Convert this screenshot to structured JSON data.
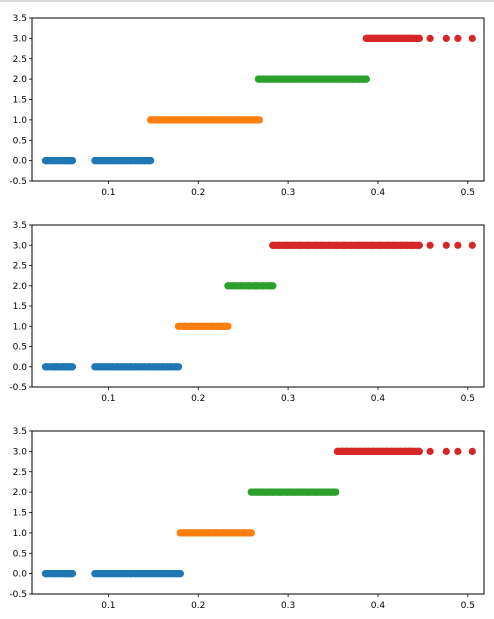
{
  "chart_data": [
    {
      "type": "scatter",
      "title": "",
      "xlabel": "",
      "ylabel": "",
      "xlim": [
        0.015,
        0.518
      ],
      "ylim": [
        -0.5,
        3.5
      ],
      "xticks": [
        "0.1",
        "0.2",
        "0.3",
        "0.4",
        "0.5"
      ],
      "yticks": [
        "-0.5",
        "0.0",
        "0.5",
        "1.0",
        "1.5",
        "2.0",
        "2.5",
        "3.0",
        "3.5"
      ],
      "grid": false,
      "legend": "none",
      "series": [
        {
          "color": "#1f77b4",
          "y": 0,
          "x": [
            0.03,
            0.031,
            0.039,
            0.042,
            0.048,
            0.051,
            0.054,
            0.057,
            0.059,
            0.06,
            0.085,
            0.09,
            0.095,
            0.1,
            0.105,
            0.11,
            0.115,
            0.12,
            0.125,
            0.13,
            0.135,
            0.14,
            0.145,
            0.147
          ]
        },
        {
          "color": "#ff7f0e",
          "y": 1,
          "x": [
            0.147,
            0.155,
            0.165,
            0.175,
            0.185,
            0.195,
            0.205,
            0.215,
            0.225,
            0.235,
            0.245,
            0.255,
            0.265,
            0.268
          ]
        },
        {
          "color": "#2ca02c",
          "y": 2,
          "x": [
            0.267,
            0.275,
            0.285,
            0.295,
            0.305,
            0.315,
            0.325,
            0.335,
            0.345,
            0.355,
            0.365,
            0.372,
            0.378,
            0.384,
            0.387
          ]
        },
        {
          "color": "#d62728",
          "y": 3,
          "x": [
            0.387,
            0.391,
            0.395,
            0.398,
            0.401,
            0.405,
            0.408,
            0.411,
            0.414,
            0.417,
            0.42,
            0.423,
            0.426,
            0.429,
            0.432,
            0.435,
            0.438,
            0.446,
            0.458,
            0.476,
            0.489,
            0.505
          ]
        }
      ]
    },
    {
      "type": "scatter",
      "title": "",
      "xlabel": "",
      "ylabel": "",
      "xlim": [
        0.015,
        0.518
      ],
      "ylim": [
        -0.5,
        3.5
      ],
      "xticks": [
        "0.1",
        "0.2",
        "0.3",
        "0.4",
        "0.5"
      ],
      "yticks": [
        "-0.5",
        "0.0",
        "0.5",
        "1.0",
        "1.5",
        "2.0",
        "2.5",
        "3.0",
        "3.5"
      ],
      "grid": false,
      "legend": "none",
      "series": [
        {
          "color": "#1f77b4",
          "y": 0,
          "x": [
            0.03,
            0.031,
            0.039,
            0.042,
            0.048,
            0.051,
            0.054,
            0.057,
            0.059,
            0.06,
            0.085,
            0.09,
            0.095,
            0.1,
            0.105,
            0.11,
            0.115,
            0.12,
            0.125,
            0.13,
            0.135,
            0.14,
            0.145,
            0.15,
            0.155,
            0.16,
            0.165,
            0.17,
            0.175,
            0.178
          ]
        },
        {
          "color": "#ff7f0e",
          "y": 1,
          "x": [
            0.178,
            0.185,
            0.192,
            0.2,
            0.208,
            0.215,
            0.222,
            0.228,
            0.233
          ]
        },
        {
          "color": "#2ca02c",
          "y": 2,
          "x": [
            0.233,
            0.24,
            0.248,
            0.256,
            0.264,
            0.272,
            0.28,
            0.283
          ]
        },
        {
          "color": "#d62728",
          "y": 3,
          "x": [
            0.283,
            0.29,
            0.298,
            0.306,
            0.314,
            0.322,
            0.33,
            0.338,
            0.346,
            0.354,
            0.362,
            0.37,
            0.378,
            0.386,
            0.394,
            0.402,
            0.41,
            0.418,
            0.426,
            0.432,
            0.438,
            0.446,
            0.458,
            0.476,
            0.489,
            0.505
          ]
        }
      ]
    },
    {
      "type": "scatter",
      "title": "",
      "xlabel": "",
      "ylabel": "",
      "xlim": [
        0.015,
        0.518
      ],
      "ylim": [
        -0.5,
        3.5
      ],
      "xticks": [
        "0.1",
        "0.2",
        "0.3",
        "0.4",
        "0.5"
      ],
      "yticks": [
        "-0.5",
        "0.0",
        "0.5",
        "1.0",
        "1.5",
        "2.0",
        "2.5",
        "3.0",
        "3.5"
      ],
      "grid": false,
      "legend": "none",
      "series": [
        {
          "color": "#1f77b4",
          "y": 0,
          "x": [
            0.03,
            0.031,
            0.039,
            0.042,
            0.048,
            0.051,
            0.054,
            0.057,
            0.059,
            0.06,
            0.085,
            0.09,
            0.095,
            0.1,
            0.105,
            0.11,
            0.115,
            0.12,
            0.125,
            0.13,
            0.135,
            0.14,
            0.145,
            0.15,
            0.155,
            0.16,
            0.165,
            0.17,
            0.175,
            0.18
          ]
        },
        {
          "color": "#ff7f0e",
          "y": 1,
          "x": [
            0.18,
            0.188,
            0.196,
            0.204,
            0.212,
            0.22,
            0.228,
            0.236,
            0.244,
            0.252,
            0.259
          ]
        },
        {
          "color": "#2ca02c",
          "y": 2,
          "x": [
            0.259,
            0.267,
            0.275,
            0.283,
            0.291,
            0.299,
            0.307,
            0.315,
            0.323,
            0.331,
            0.339,
            0.347,
            0.353
          ]
        },
        {
          "color": "#d62728",
          "y": 3,
          "x": [
            0.355,
            0.36,
            0.365,
            0.37,
            0.375,
            0.38,
            0.385,
            0.39,
            0.395,
            0.4,
            0.405,
            0.41,
            0.415,
            0.42,
            0.425,
            0.43,
            0.435,
            0.438,
            0.446,
            0.458,
            0.476,
            0.489,
            0.505
          ]
        }
      ]
    }
  ]
}
